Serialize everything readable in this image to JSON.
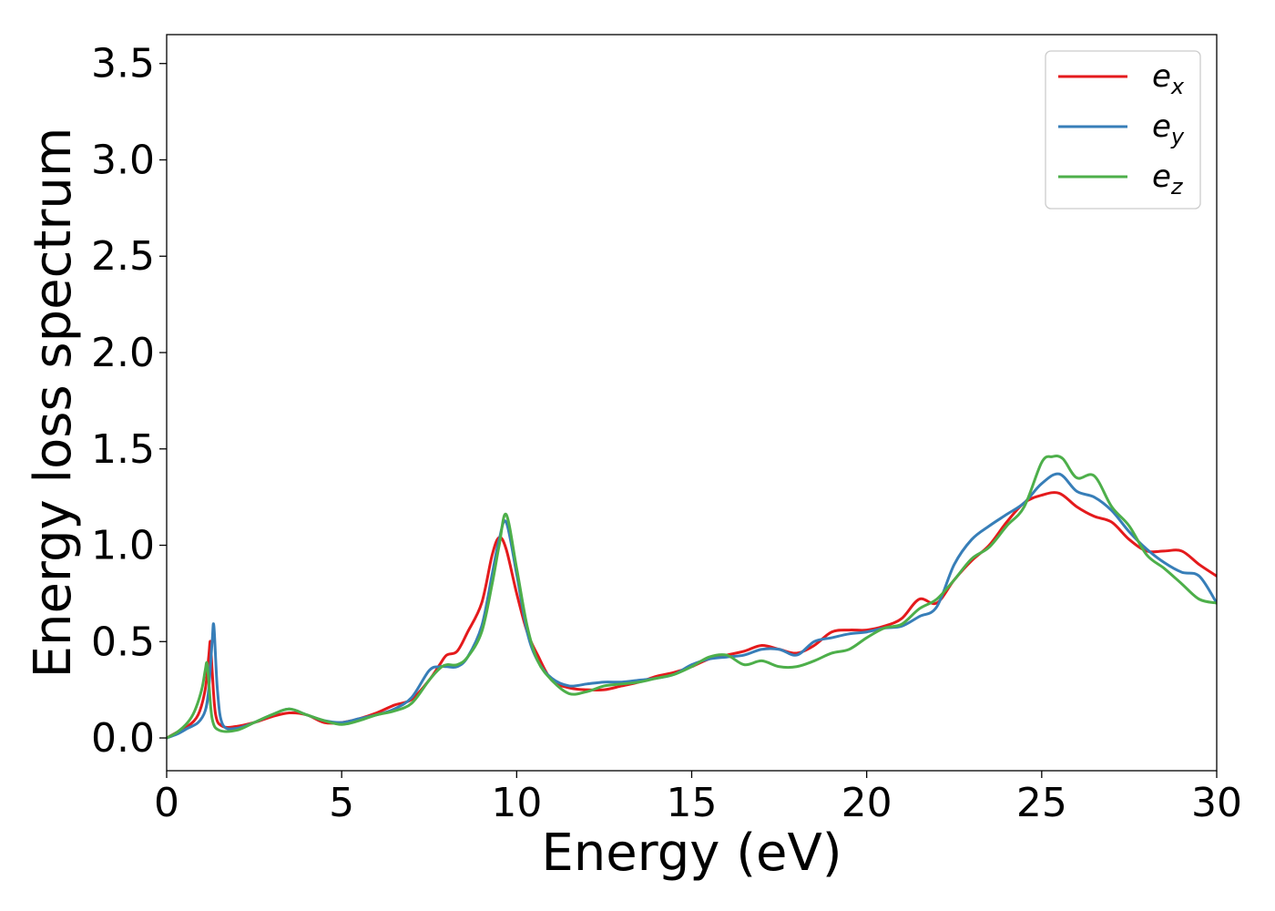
{
  "chart_data": {
    "type": "line",
    "title": "",
    "xlabel": "Energy (eV)",
    "ylabel": "Energy loss spectrum",
    "xlim": [
      0,
      30
    ],
    "ylim": [
      -0.17,
      3.65
    ],
    "xticks": [
      0,
      5,
      10,
      15,
      20,
      25,
      30
    ],
    "xtick_labels": [
      "0",
      "5",
      "10",
      "15",
      "20",
      "25",
      "30"
    ],
    "yticks": [
      0.0,
      0.5,
      1.0,
      1.5,
      2.0,
      2.5,
      3.0,
      3.5
    ],
    "ytick_labels": [
      "0.0",
      "0.5",
      "1.0",
      "1.5",
      "2.0",
      "2.5",
      "3.0",
      "3.5"
    ],
    "grid": false,
    "legend_position": "top-right",
    "series": [
      {
        "name": "e_x",
        "label_base": "e",
        "label_sub": "x",
        "color": "#e41a1c",
        "x": [
          0,
          0.3,
          0.6,
          0.9,
          1.1,
          1.2,
          1.25,
          1.3,
          1.4,
          1.6,
          2.0,
          2.5,
          3.0,
          3.5,
          4.0,
          4.5,
          5.0,
          5.5,
          6.0,
          6.5,
          7.0,
          7.5,
          7.8,
          8.0,
          8.3,
          8.6,
          9.0,
          9.3,
          9.5,
          9.7,
          10.0,
          10.3,
          10.6,
          11.0,
          11.5,
          12.0,
          12.5,
          13.0,
          13.5,
          14.0,
          14.5,
          15.0,
          15.5,
          16.0,
          16.5,
          17.0,
          17.5,
          18.0,
          18.5,
          19.0,
          19.5,
          20.0,
          20.5,
          21.0,
          21.5,
          22.0,
          22.5,
          23.0,
          23.5,
          24.0,
          24.5,
          25.0,
          25.5,
          26.0,
          26.5,
          27.0,
          27.5,
          28.0,
          28.5,
          29.0,
          29.5,
          30.0
        ],
        "y": [
          0.0,
          0.03,
          0.06,
          0.12,
          0.25,
          0.42,
          0.5,
          0.35,
          0.12,
          0.06,
          0.06,
          0.08,
          0.11,
          0.13,
          0.12,
          0.08,
          0.08,
          0.1,
          0.13,
          0.17,
          0.2,
          0.3,
          0.38,
          0.43,
          0.45,
          0.55,
          0.7,
          0.95,
          1.04,
          0.98,
          0.75,
          0.55,
          0.43,
          0.3,
          0.26,
          0.25,
          0.25,
          0.27,
          0.29,
          0.32,
          0.34,
          0.37,
          0.41,
          0.43,
          0.45,
          0.48,
          0.46,
          0.44,
          0.48,
          0.55,
          0.56,
          0.56,
          0.58,
          0.62,
          0.72,
          0.7,
          0.82,
          0.92,
          1.0,
          1.12,
          1.22,
          1.26,
          1.27,
          1.2,
          1.15,
          1.12,
          1.03,
          0.97,
          0.97,
          0.97,
          0.9,
          0.84
        ]
      },
      {
        "name": "e_y",
        "label_base": "e",
        "label_sub": "y",
        "color": "#377eb8",
        "x": [
          0,
          0.3,
          0.6,
          0.9,
          1.1,
          1.2,
          1.3,
          1.35,
          1.45,
          1.6,
          2.0,
          2.5,
          3.0,
          3.5,
          4.0,
          4.5,
          5.0,
          5.5,
          6.0,
          6.5,
          7.0,
          7.5,
          7.8,
          8.0,
          8.3,
          8.6,
          9.0,
          9.3,
          9.5,
          9.7,
          10.0,
          10.3,
          10.6,
          11.0,
          11.5,
          12.0,
          12.5,
          13.0,
          13.5,
          14.0,
          14.5,
          15.0,
          15.5,
          16.0,
          16.5,
          17.0,
          17.5,
          18.0,
          18.5,
          19.0,
          19.5,
          20.0,
          20.5,
          21.0,
          21.5,
          22.0,
          22.5,
          23.0,
          23.5,
          24.0,
          24.5,
          25.0,
          25.5,
          26.0,
          26.5,
          27.0,
          27.5,
          28.0,
          28.5,
          29.0,
          29.5,
          30.0
        ],
        "y": [
          0.0,
          0.02,
          0.05,
          0.08,
          0.14,
          0.25,
          0.5,
          0.58,
          0.25,
          0.07,
          0.05,
          0.08,
          0.12,
          0.15,
          0.12,
          0.09,
          0.08,
          0.1,
          0.12,
          0.15,
          0.21,
          0.35,
          0.37,
          0.37,
          0.37,
          0.42,
          0.58,
          0.85,
          1.03,
          1.12,
          0.85,
          0.55,
          0.4,
          0.31,
          0.27,
          0.28,
          0.29,
          0.29,
          0.3,
          0.31,
          0.33,
          0.38,
          0.41,
          0.42,
          0.43,
          0.46,
          0.46,
          0.43,
          0.5,
          0.52,
          0.54,
          0.55,
          0.57,
          0.58,
          0.63,
          0.68,
          0.9,
          1.03,
          1.1,
          1.16,
          1.22,
          1.32,
          1.37,
          1.28,
          1.25,
          1.18,
          1.07,
          0.98,
          0.91,
          0.86,
          0.84,
          0.7
        ]
      },
      {
        "name": "e_z",
        "label_base": "e",
        "label_sub": "z",
        "color": "#4daf4a",
        "x": [
          0,
          0.3,
          0.6,
          0.8,
          1.0,
          1.1,
          1.15,
          1.2,
          1.3,
          1.5,
          2.0,
          2.5,
          3.0,
          3.5,
          4.0,
          4.5,
          5.0,
          5.5,
          6.0,
          6.5,
          7.0,
          7.5,
          7.8,
          8.0,
          8.3,
          8.6,
          9.0,
          9.3,
          9.5,
          9.7,
          10.0,
          10.3,
          10.6,
          11.0,
          11.5,
          12.0,
          12.5,
          13.0,
          13.5,
          14.0,
          14.5,
          15.0,
          15.5,
          16.0,
          16.5,
          17.0,
          17.5,
          18.0,
          18.5,
          19.0,
          19.5,
          20.0,
          20.5,
          21.0,
          21.5,
          22.0,
          22.5,
          23.0,
          23.5,
          24.0,
          24.5,
          25.0,
          25.3,
          25.6,
          26.0,
          26.5,
          27.0,
          27.5,
          28.0,
          28.5,
          29.0,
          29.5,
          30.0
        ],
        "y": [
          0.0,
          0.03,
          0.08,
          0.14,
          0.25,
          0.35,
          0.39,
          0.3,
          0.1,
          0.04,
          0.04,
          0.08,
          0.12,
          0.15,
          0.12,
          0.09,
          0.07,
          0.09,
          0.12,
          0.14,
          0.18,
          0.3,
          0.36,
          0.38,
          0.38,
          0.42,
          0.55,
          0.8,
          1.0,
          1.16,
          0.88,
          0.58,
          0.4,
          0.3,
          0.23,
          0.24,
          0.27,
          0.28,
          0.29,
          0.31,
          0.33,
          0.37,
          0.42,
          0.43,
          0.38,
          0.4,
          0.37,
          0.37,
          0.4,
          0.44,
          0.46,
          0.52,
          0.57,
          0.59,
          0.67,
          0.72,
          0.82,
          0.93,
          0.99,
          1.1,
          1.2,
          1.43,
          1.46,
          1.45,
          1.35,
          1.36,
          1.2,
          1.1,
          0.95,
          0.88,
          0.8,
          0.72,
          0.7
        ]
      }
    ]
  }
}
